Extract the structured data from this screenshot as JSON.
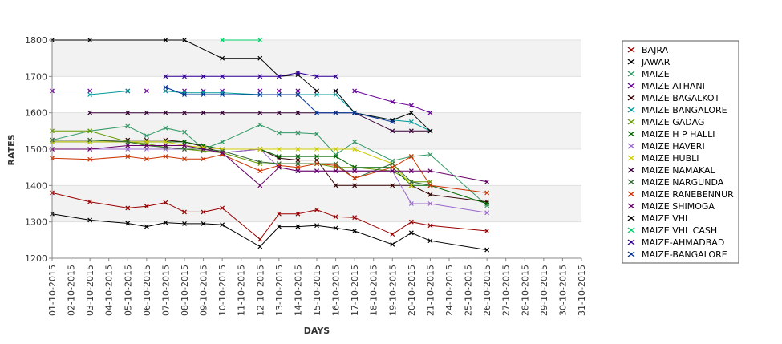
{
  "chart_data": {
    "type": "line",
    "xlabel": "DAYS",
    "ylabel": "RATES",
    "ylim": [
      1200,
      1800
    ],
    "yticks": [
      1200,
      1300,
      1400,
      1500,
      1600,
      1700,
      1800
    ],
    "x": [
      "01-10-2015",
      "02-10-2015",
      "03-10-2015",
      "04-10-2015",
      "05-10-2015",
      "06-10-2015",
      "07-10-2015",
      "08-10-2015",
      "09-10-2015",
      "10-10-2015",
      "11-10-2015",
      "12-10-2015",
      "13-10-2015",
      "14-10-2015",
      "15-10-2015",
      "16-10-2015",
      "17-10-2015",
      "18-10-2015",
      "19-10-2015",
      "20-10-2015",
      "21-10-2015",
      "24-10-2015",
      "25-10-2015",
      "26-10-2015",
      "27-10-2015",
      "28-10-2015",
      "29-10-2015",
      "30-10-2015",
      "31-10-2015"
    ],
    "grid": "horizontal bands",
    "legend_position": "right",
    "series": [
      {
        "name": "BAJRA",
        "color": "#990000",
        "points": [
          [
            0,
            1380
          ],
          [
            2,
            1355
          ],
          [
            4,
            1338
          ],
          [
            5,
            1343
          ],
          [
            6,
            1353
          ],
          [
            7,
            1327
          ],
          [
            8,
            1327
          ],
          [
            9,
            1338
          ],
          [
            11,
            1252
          ],
          [
            12,
            1322
          ],
          [
            13,
            1322
          ],
          [
            14,
            1333
          ],
          [
            15,
            1314
          ],
          [
            16,
            1312
          ],
          [
            18,
            1266
          ],
          [
            19,
            1300
          ],
          [
            20,
            1290
          ],
          [
            23,
            1275
          ]
        ]
      },
      {
        "name": "JAWAR",
        "color": "#000000",
        "points": [
          [
            0,
            1322
          ],
          [
            2,
            1305
          ],
          [
            4,
            1296
          ],
          [
            5,
            1287
          ],
          [
            6,
            1298
          ],
          [
            7,
            1295
          ],
          [
            8,
            1295
          ],
          [
            9,
            1292
          ],
          [
            11,
            1232
          ],
          [
            12,
            1287
          ],
          [
            13,
            1287
          ],
          [
            14,
            1290
          ],
          [
            15,
            1283
          ],
          [
            16,
            1275
          ],
          [
            18,
            1238
          ],
          [
            19,
            1270
          ],
          [
            20,
            1248
          ],
          [
            23,
            1223
          ]
        ]
      },
      {
        "name": "MAIZE",
        "color": "#339966",
        "points": [
          [
            0,
            1525
          ],
          [
            2,
            1550
          ],
          [
            4,
            1563
          ],
          [
            5,
            1537
          ],
          [
            6,
            1558
          ],
          [
            7,
            1547
          ],
          [
            8,
            1500
          ],
          [
            9,
            1520
          ],
          [
            11,
            1567
          ],
          [
            12,
            1545
          ],
          [
            13,
            1545
          ],
          [
            14,
            1542
          ],
          [
            15,
            1485
          ],
          [
            16,
            1520
          ],
          [
            18,
            1468
          ],
          [
            19,
            1480
          ],
          [
            20,
            1485
          ],
          [
            23,
            1345
          ]
        ]
      },
      {
        "name": "MAIZE ATHANI",
        "color": "#660099",
        "points": [
          [
            0,
            1660
          ],
          [
            2,
            1660
          ],
          [
            4,
            1660
          ],
          [
            5,
            1660
          ],
          [
            6,
            1660
          ],
          [
            7,
            1660
          ],
          [
            8,
            1660
          ],
          [
            9,
            1660
          ],
          [
            11,
            1660
          ],
          [
            12,
            1660
          ],
          [
            13,
            1660
          ],
          [
            14,
            1660
          ],
          [
            15,
            1660
          ],
          [
            16,
            1660
          ],
          [
            18,
            1630
          ],
          [
            19,
            1620
          ],
          [
            20,
            1600
          ]
        ]
      },
      {
        "name": "MAIZE BAGALKOT",
        "color": "#330000",
        "points": [
          [
            0,
            1525
          ],
          [
            2,
            1525
          ],
          [
            4,
            1525
          ],
          [
            5,
            1525
          ],
          [
            6,
            1525
          ],
          [
            7,
            1520
          ],
          [
            8,
            1507
          ],
          [
            9,
            1490
          ],
          [
            11,
            1500
          ],
          [
            12,
            1475
          ],
          [
            13,
            1470
          ],
          [
            14,
            1470
          ],
          [
            15,
            1400
          ],
          [
            16,
            1400
          ],
          [
            18,
            1400
          ],
          [
            19,
            1400
          ],
          [
            20,
            1375
          ],
          [
            23,
            1355
          ]
        ]
      },
      {
        "name": "MAIZE BANGALORE",
        "color": "#009999",
        "points": [
          [
            2,
            1650
          ],
          [
            4,
            1660
          ],
          [
            6,
            1660
          ],
          [
            7,
            1655
          ],
          [
            8,
            1655
          ],
          [
            9,
            1655
          ],
          [
            11,
            1650
          ],
          [
            12,
            1650
          ],
          [
            13,
            1650
          ],
          [
            14,
            1650
          ],
          [
            15,
            1650
          ],
          [
            16,
            1600
          ],
          [
            18,
            1580
          ],
          [
            19,
            1575
          ],
          [
            20,
            1550
          ]
        ]
      },
      {
        "name": "MAIZE GADAG",
        "color": "#669900",
        "points": [
          [
            0,
            1550
          ],
          [
            2,
            1550
          ],
          [
            4,
            1520
          ],
          [
            5,
            1515
          ],
          [
            6,
            1505
          ],
          [
            7,
            1500
          ],
          [
            8,
            1495
          ],
          [
            9,
            1490
          ],
          [
            11,
            1460
          ],
          [
            12,
            1460
          ],
          [
            13,
            1460
          ],
          [
            14,
            1460
          ],
          [
            15,
            1450
          ],
          [
            16,
            1450
          ],
          [
            18,
            1440
          ],
          [
            19,
            1410
          ],
          [
            20,
            1410
          ]
        ]
      },
      {
        "name": "MAIZE H P HALLI",
        "color": "#006600",
        "points": [
          [
            0,
            1520
          ],
          [
            2,
            1520
          ],
          [
            4,
            1520
          ],
          [
            5,
            1520
          ],
          [
            6,
            1520
          ],
          [
            7,
            1520
          ],
          [
            8,
            1510
          ],
          [
            9,
            1500
          ],
          [
            11,
            1500
          ],
          [
            12,
            1480
          ],
          [
            13,
            1480
          ],
          [
            14,
            1480
          ],
          [
            15,
            1480
          ],
          [
            16,
            1450
          ],
          [
            18,
            1450
          ],
          [
            19,
            1400
          ],
          [
            20,
            1400
          ],
          [
            23,
            1350
          ]
        ]
      },
      {
        "name": "MAIZE HAVERI",
        "color": "#9966cc",
        "points": [
          [
            0,
            1500
          ],
          [
            2,
            1500
          ],
          [
            4,
            1500
          ],
          [
            5,
            1500
          ],
          [
            6,
            1500
          ],
          [
            7,
            1500
          ],
          [
            8,
            1500
          ],
          [
            9,
            1490
          ],
          [
            11,
            1500
          ],
          [
            12,
            1450
          ],
          [
            13,
            1440
          ],
          [
            14,
            1440
          ],
          [
            15,
            1440
          ],
          [
            16,
            1440
          ],
          [
            18,
            1440
          ],
          [
            19,
            1350
          ],
          [
            20,
            1350
          ],
          [
            23,
            1325
          ]
        ]
      },
      {
        "name": "MAIZE HUBLI",
        "color": "#cccc00",
        "points": [
          [
            0,
            1520
          ],
          [
            2,
            1520
          ],
          [
            4,
            1520
          ],
          [
            5,
            1520
          ],
          [
            6,
            1520
          ],
          [
            7,
            1510
          ],
          [
            8,
            1505
          ],
          [
            9,
            1500
          ],
          [
            11,
            1500
          ],
          [
            12,
            1500
          ],
          [
            13,
            1500
          ],
          [
            14,
            1500
          ],
          [
            15,
            1500
          ],
          [
            16,
            1500
          ],
          [
            18,
            1460
          ],
          [
            19,
            1400
          ]
        ]
      },
      {
        "name": "MAIZE NAMAKAL",
        "color": "#330033",
        "points": [
          [
            2,
            1600
          ],
          [
            4,
            1600
          ],
          [
            5,
            1600
          ],
          [
            6,
            1600
          ],
          [
            7,
            1600
          ],
          [
            8,
            1600
          ],
          [
            9,
            1600
          ],
          [
            11,
            1600
          ],
          [
            12,
            1600
          ],
          [
            13,
            1600
          ],
          [
            14,
            1600
          ],
          [
            15,
            1600
          ],
          [
            16,
            1600
          ],
          [
            18,
            1550
          ],
          [
            19,
            1550
          ],
          [
            20,
            1550
          ]
        ]
      },
      {
        "name": "MAIZE NARGUNDA",
        "color": "#336633",
        "points": [
          [
            0,
            1525
          ],
          [
            2,
            1525
          ],
          [
            4,
            1520
          ],
          [
            5,
            1510
          ],
          [
            6,
            1505
          ],
          [
            7,
            1500
          ],
          [
            8,
            1500
          ],
          [
            9,
            1495
          ],
          [
            11,
            1465
          ],
          [
            12,
            1460
          ],
          [
            13,
            1460
          ],
          [
            14,
            1460
          ],
          [
            15,
            1460
          ],
          [
            16,
            1420
          ],
          [
            18,
            1460
          ],
          [
            19,
            1410
          ],
          [
            20,
            1400
          ]
        ]
      },
      {
        "name": "MAIZE RANEBENNUR",
        "color": "#cc3300",
        "points": [
          [
            0,
            1475
          ],
          [
            2,
            1472
          ],
          [
            4,
            1480
          ],
          [
            5,
            1473
          ],
          [
            6,
            1480
          ],
          [
            7,
            1473
          ],
          [
            8,
            1473
          ],
          [
            9,
            1485
          ],
          [
            11,
            1440
          ],
          [
            12,
            1455
          ],
          [
            13,
            1450
          ],
          [
            14,
            1460
          ],
          [
            15,
            1455
          ],
          [
            16,
            1420
          ],
          [
            18,
            1450
          ],
          [
            19,
            1480
          ],
          [
            20,
            1400
          ],
          [
            23,
            1380
          ]
        ]
      },
      {
        "name": "MAIZE SHIMOGA",
        "color": "#660066",
        "points": [
          [
            0,
            1500
          ],
          [
            2,
            1500
          ],
          [
            4,
            1510
          ],
          [
            5,
            1510
          ],
          [
            6,
            1510
          ],
          [
            7,
            1510
          ],
          [
            8,
            1500
          ],
          [
            9,
            1490
          ],
          [
            11,
            1400
          ],
          [
            12,
            1450
          ],
          [
            13,
            1440
          ],
          [
            14,
            1440
          ],
          [
            15,
            1440
          ],
          [
            16,
            1440
          ],
          [
            18,
            1440
          ],
          [
            19,
            1440
          ],
          [
            20,
            1440
          ],
          [
            23,
            1410
          ]
        ]
      },
      {
        "name": "MAIZE VHL",
        "color": "#000000",
        "points": [
          [
            0,
            1800
          ],
          [
            2,
            1800
          ],
          [
            6,
            1800
          ],
          [
            7,
            1800
          ],
          [
            9,
            1750
          ],
          [
            11,
            1750
          ],
          [
            12,
            1700
          ],
          [
            13,
            1705
          ],
          [
            14,
            1660
          ],
          [
            15,
            1660
          ],
          [
            16,
            1600
          ],
          [
            18,
            1580
          ],
          [
            19,
            1600
          ],
          [
            20,
            1550
          ]
        ]
      },
      {
        "name": "MAIZE VHL CASH",
        "color": "#00cc66",
        "points": [
          [
            9,
            1800
          ],
          [
            11,
            1800
          ]
        ]
      },
      {
        "name": "MAIZE-AHMADBAD",
        "color": "#330099",
        "points": [
          [
            6,
            1700
          ],
          [
            7,
            1700
          ],
          [
            8,
            1700
          ],
          [
            9,
            1700
          ],
          [
            11,
            1700
          ],
          [
            12,
            1700
          ],
          [
            13,
            1710
          ],
          [
            14,
            1700
          ],
          [
            15,
            1700
          ]
        ]
      },
      {
        "name": "MAIZE-BANGALORE",
        "color": "#003399",
        "points": [
          [
            6,
            1670
          ],
          [
            7,
            1650
          ],
          [
            8,
            1650
          ],
          [
            9,
            1650
          ],
          [
            11,
            1650
          ],
          [
            12,
            1650
          ],
          [
            13,
            1650
          ],
          [
            14,
            1600
          ],
          [
            15,
            1600
          ],
          [
            16,
            1600
          ],
          [
            18,
            1575
          ]
        ]
      }
    ]
  }
}
